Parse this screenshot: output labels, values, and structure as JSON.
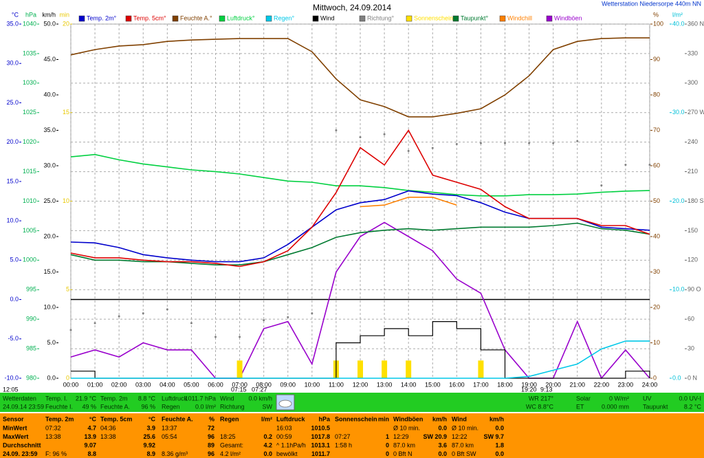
{
  "chart_data": {
    "type": "line",
    "title": "Mittwoch, 24.09.2014",
    "subtitle": "Wetterstation Niedersorpe 440m NN",
    "categories": [
      "00:00",
      "01:00",
      "02:00",
      "03:00",
      "04:00",
      "05:00",
      "06:00",
      "07:00",
      "08:00",
      "09:00",
      "10:00",
      "11:00",
      "12:00",
      "13:00",
      "14:00",
      "15:00",
      "16:00",
      "17:00",
      "18:00",
      "19:00",
      "20:00",
      "21:00",
      "22:00",
      "23:00",
      "24:00"
    ],
    "grid": true,
    "annotations": [
      "12:05",
      "07:15",
      "07:27",
      "19:20",
      "9:13"
    ],
    "axes": [
      {
        "label": "°C",
        "color": "#0000cc",
        "lim": [
          -10,
          35
        ],
        "ticks": [
          {
            "value": -10,
            "label": "-10.0"
          },
          {
            "value": -5,
            "label": "-5.0"
          },
          {
            "value": 0,
            "label": "0.0"
          },
          {
            "value": 5,
            "label": "5.0"
          },
          {
            "value": 10,
            "label": "10.0"
          },
          {
            "value": 15,
            "label": "15.0"
          },
          {
            "value": 20,
            "label": "20.0"
          },
          {
            "value": 25,
            "label": "25.0"
          },
          {
            "value": 30,
            "label": "30.0"
          },
          {
            "value": 35,
            "label": "35.0"
          }
        ]
      },
      {
        "label": "hPa",
        "color": "#00b050",
        "lim": [
          980,
          1040
        ],
        "grid": true,
        "ticks": [
          980,
          985,
          990,
          995,
          1000,
          1005,
          1010,
          1015,
          1020,
          1025,
          1030,
          1035,
          1040
        ]
      },
      {
        "label": "km/h",
        "color": "#000000",
        "lim": [
          0,
          50
        ],
        "ticks": [
          {
            "value": 0,
            "label": "0.0"
          },
          {
            "value": 5,
            "label": "5.0"
          },
          {
            "value": 10,
            "label": "10.0"
          },
          {
            "value": 15,
            "label": "15.0"
          },
          {
            "value": 20,
            "label": "20.0"
          },
          {
            "value": 25,
            "label": "25.0"
          },
          {
            "value": 30,
            "label": "30.0"
          },
          {
            "value": 35,
            "label": "35.0"
          },
          {
            "value": 40,
            "label": "40.0"
          },
          {
            "value": 45,
            "label": "45.0"
          },
          {
            "value": 50,
            "label": "50.0"
          }
        ]
      },
      {
        "label": "min",
        "color": "#e8c800",
        "lim": [
          0,
          20
        ],
        "ticks": [
          0,
          5,
          10,
          15,
          20
        ]
      },
      {
        "label": "%",
        "color": "#804000",
        "lim": [
          0,
          100
        ],
        "ticks": [
          0,
          10,
          20,
          30,
          40,
          50,
          60,
          70,
          80,
          90,
          100
        ]
      },
      {
        "label": "l/m²",
        "color": "#00c0d8",
        "lim": [
          0,
          40
        ],
        "ticks": [
          {
            "value": 0,
            "label": "0.0"
          },
          {
            "value": 10,
            "label": "10.0"
          },
          {
            "value": 20,
            "label": "20.0"
          },
          {
            "value": 30,
            "label": "30.0"
          },
          {
            "value": 40,
            "label": "40.0"
          }
        ]
      },
      {
        "color": "#606060",
        "lim": [
          0,
          360
        ],
        "ticks": [
          {
            "value": 0,
            "label": "0 N"
          },
          30,
          60,
          {
            "value": 90,
            "label": "90 O"
          },
          120,
          150,
          {
            "value": 180,
            "label": "180 S"
          },
          210,
          240,
          {
            "value": 270,
            "label": "270 W"
          },
          300,
          330,
          {
            "value": 360,
            "label": "360 N"
          }
        ]
      }
    ],
    "series": [
      {
        "name": "Temp. 2m°",
        "color": "#0000cc",
        "axis": 0,
        "style": "line",
        "values": [
          7.3,
          7.2,
          6.6,
          5.7,
          5.3,
          5.0,
          4.8,
          4.8,
          5.3,
          7.0,
          9.2,
          11.4,
          12.3,
          12.7,
          13.8,
          13.4,
          13.2,
          12.3,
          11.1,
          10.3,
          10.3,
          10.3,
          9.2,
          9.0,
          8.8
        ]
      },
      {
        "name": "Temp. 5cm°",
        "color": "#dd0000",
        "axis": 0,
        "style": "line",
        "values": [
          5.9,
          5.3,
          5.3,
          5.0,
          4.8,
          4.8,
          4.6,
          4.2,
          4.8,
          6.2,
          9.2,
          13.6,
          19.3,
          17.1,
          21.5,
          15.8,
          14.9,
          14.0,
          11.8,
          10.3,
          10.3,
          10.3,
          9.4,
          9.4,
          8.3
        ]
      },
      {
        "name": "Feuchte A.°",
        "color": "#804000",
        "axis": 4,
        "style": "line",
        "values": [
          91.3,
          92.8,
          93.8,
          94.2,
          95.1,
          95.5,
          95.7,
          95.9,
          95.9,
          95.9,
          92.2,
          84.5,
          78.6,
          76.7,
          73.8,
          73.8,
          74.8,
          76.1,
          80.0,
          85.4,
          92.8,
          95.1,
          95.9,
          96.1,
          96.1
        ]
      },
      {
        "name": "Luftdruck°",
        "color": "#00d040",
        "axis": 1,
        "style": "line",
        "values": [
          1017.5,
          1017.9,
          1017.0,
          1016.3,
          1015.8,
          1015.3,
          1015.0,
          1014.6,
          1014.0,
          1013.4,
          1013.2,
          1012.6,
          1012.6,
          1012.3,
          1011.8,
          1011.5,
          1011.1,
          1010.9,
          1010.9,
          1011.1,
          1011.1,
          1011.2,
          1011.5,
          1011.7,
          1011.8
        ]
      },
      {
        "name": "Regen°",
        "color": "#00c8e8",
        "axis": 5,
        "style": "line",
        "values": [
          0,
          0,
          0,
          0,
          0,
          0,
          0,
          0,
          0,
          0,
          0,
          0,
          0,
          0,
          0,
          0,
          0,
          0,
          0,
          0.2,
          0.9,
          1.6,
          3.3,
          4.2,
          4.2
        ]
      },
      {
        "name": "Wind",
        "color": "#000000",
        "axis": 2,
        "style": "step",
        "values": [
          1,
          0,
          0,
          0,
          0,
          0,
          0,
          0,
          0,
          0,
          0,
          5,
          6,
          7,
          6,
          8,
          7,
          4,
          0,
          0,
          0,
          0,
          0,
          1,
          0
        ]
      },
      {
        "name": "Richtung°",
        "color": "#808080",
        "axis": 6,
        "style": "dots",
        "values": [
          49,
          56,
          63,
          66,
          70,
          56,
          42,
          42,
          59,
          62,
          66,
          252,
          245,
          248,
          231,
          234,
          238,
          239,
          239,
          239,
          239,
          241,
          196,
          217,
          217
        ]
      },
      {
        "name": "Sonnenschein",
        "color": "#ffe000",
        "axis": 3,
        "style": "bars",
        "values": [
          0,
          0,
          0,
          0,
          0,
          0,
          0,
          1,
          0,
          0,
          0,
          1,
          1,
          1,
          1,
          0,
          0,
          1,
          0,
          0,
          0,
          0,
          0,
          0,
          0
        ]
      },
      {
        "name": "Taupunkt°",
        "color": "#007a30",
        "axis": 0,
        "style": "line",
        "values": [
          5.7,
          5.0,
          5.0,
          4.8,
          4.8,
          4.6,
          4.4,
          4.4,
          4.8,
          5.7,
          6.6,
          7.9,
          8.5,
          8.8,
          9.0,
          8.8,
          9.0,
          9.2,
          9.2,
          9.2,
          9.4,
          9.7,
          9.0,
          8.8,
          8.3
        ]
      },
      {
        "name": "Windchill",
        "color": "#ff8000",
        "axis": 0,
        "style": "line",
        "values": [
          null,
          null,
          null,
          null,
          null,
          null,
          null,
          null,
          null,
          null,
          null,
          null,
          11.8,
          12.0,
          13.0,
          13.0,
          12.0,
          null,
          null,
          null,
          null,
          null,
          null,
          null,
          null
        ]
      },
      {
        "name": "Windböen",
        "color": "#9900cc",
        "axis": 2,
        "style": "line",
        "values": [
          3,
          4,
          3,
          5,
          4,
          4,
          0,
          0,
          7,
          8,
          2,
          15,
          20,
          22,
          20,
          18,
          14,
          12,
          4,
          0,
          0,
          8,
          0,
          4,
          0
        ]
      }
    ]
  },
  "status_bar": {
    "row1": [
      "Wetterdaten",
      "Temp. I.",
      "21.9 °C",
      "Temp. 2m",
      "8.8 °C",
      "Luftdruck",
      "1011.7 hPa",
      "Wind",
      "0.0 km/h",
      "WR 217°",
      "Solar",
      "0 W/m²",
      "UV",
      "0.0 UV-I"
    ],
    "row2": [
      "24.09.14 23:59",
      "Feuchte I.",
      "49 %",
      "Feuchte A.",
      "96 %",
      "Regen",
      "0.0 l/m²",
      "Richtung",
      "SW",
      "WC 8.8°C",
      "ET",
      "0.000 mm",
      "Taupunkt",
      "8.2 °C"
    ]
  },
  "table": {
    "header": [
      "Sensor",
      "Temp. 2m",
      "°C",
      "Temp. 5cm",
      "°C",
      "Feuchte A.",
      "%",
      "Regen",
      "l/m²",
      "Luftdruck",
      "hPa",
      "Sonnenschein",
      "min",
      "Windböen",
      "km/h",
      "Wind",
      "km/h"
    ],
    "rows": [
      [
        "MinWert",
        "07:32",
        "4.7",
        "04:36",
        "3.9",
        "13:37",
        "72",
        null,
        null,
        "16:03",
        "1010.5",
        null,
        null,
        "Ø 10 min.",
        "0.0",
        "Ø 10 min.",
        "0.0"
      ],
      [
        "MaxWert",
        "13:38",
        "13.9",
        "13:38",
        "25.6",
        "05:54",
        "96",
        "18:25",
        "0.2",
        "00:59",
        "1017.8",
        "07:27",
        "1",
        "12:29",
        "SW 20.9",
        "12:22",
        "SW 9.7"
      ],
      [
        "Durchschnitt",
        null,
        "9.07",
        null,
        "9.92",
        null,
        "89",
        "Gesamt:",
        "4.2",
        "^ 1.1hPa/h",
        "1013.1",
        "1:58 h",
        "0",
        "87.0 km",
        "3.6",
        "87.0 km",
        "1.8"
      ],
      [
        "24.09. 23:59",
        "F: 96 %",
        "8.8",
        null,
        "8.9",
        "8.36 g/m³",
        "96",
        "4.2 l/m²",
        "0.0",
        "bewölkt",
        "1011.7",
        null,
        "0",
        "0 Bft N",
        "0.0",
        "0 Bft SW",
        "0.0"
      ]
    ]
  }
}
